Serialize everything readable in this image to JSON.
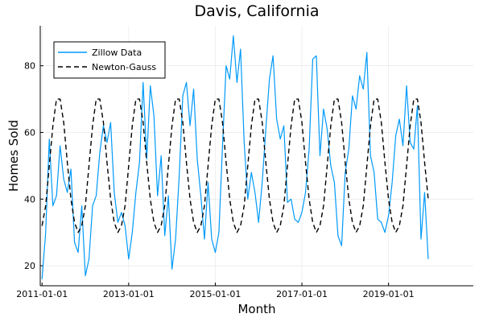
{
  "chart_data": {
    "type": "line",
    "title": "Davis, California",
    "xlabel": "Month",
    "ylabel": "Homes Sold",
    "xlim": [
      "2011-01-01",
      "2020-12-01"
    ],
    "ylim": [
      14,
      92
    ],
    "x_ticks": [
      "2011-01-01",
      "2013-01-01",
      "2015-01-01",
      "2017-01-01",
      "2019-01-01"
    ],
    "y_ticks": [
      20,
      40,
      60,
      80
    ],
    "grid": true,
    "legend_position": "top-left",
    "series": [
      {
        "name": "Zillow Data",
        "color": "#009AFA",
        "style": "solid",
        "start": "2011-01-01",
        "frequency": "monthly",
        "values": [
          16,
          30,
          58,
          38,
          41,
          56,
          46,
          42,
          49,
          27,
          24,
          38,
          17,
          22,
          38,
          41,
          54,
          62,
          57,
          63,
          42,
          33,
          36,
          32,
          22,
          30,
          42,
          51,
          75,
          52,
          74,
          65,
          41,
          53,
          29,
          41,
          19,
          28,
          47,
          71,
          75,
          62,
          73,
          52,
          41,
          28,
          45,
          28,
          24,
          30,
          56,
          80,
          76,
          89,
          75,
          85,
          57,
          40,
          48,
          42,
          33,
          45,
          61,
          76,
          83,
          64,
          58,
          62,
          39,
          40,
          34,
          33,
          36,
          42,
          55,
          82,
          83,
          53,
          67,
          61,
          50,
          45,
          29,
          26,
          48,
          55,
          71,
          67,
          77,
          73,
          84,
          53,
          48,
          34,
          33,
          30,
          35,
          45,
          59,
          64,
          56,
          74,
          57,
          55,
          68,
          28,
          42,
          22
        ]
      },
      {
        "name": "Newton-Gauss",
        "color": "#000000",
        "style": "dashed",
        "start": "2011-01-01",
        "frequency": "monthly",
        "values": [
          32,
          38,
          50,
          62,
          70,
          70,
          63,
          51,
          40,
          33,
          30,
          32,
          38,
          50,
          62,
          70,
          70,
          63,
          51,
          40,
          33,
          30,
          32,
          38,
          50,
          62,
          70,
          70,
          63,
          51,
          40,
          33,
          30,
          32,
          38,
          50,
          62,
          70,
          70,
          63,
          51,
          40,
          33,
          30,
          32,
          38,
          50,
          62,
          70,
          70,
          63,
          51,
          40,
          33,
          30,
          32,
          38,
          50,
          62,
          70,
          70,
          63,
          51,
          40,
          33,
          30,
          32,
          38,
          50,
          62,
          70,
          70,
          63,
          51,
          40,
          33,
          30,
          32,
          38,
          50,
          62,
          70,
          70,
          63,
          51,
          40,
          33,
          30,
          32,
          38,
          50,
          62,
          70,
          70,
          63,
          51,
          40,
          33,
          30,
          32,
          38,
          50,
          62,
          70,
          70,
          63,
          51,
          40
        ]
      }
    ]
  }
}
